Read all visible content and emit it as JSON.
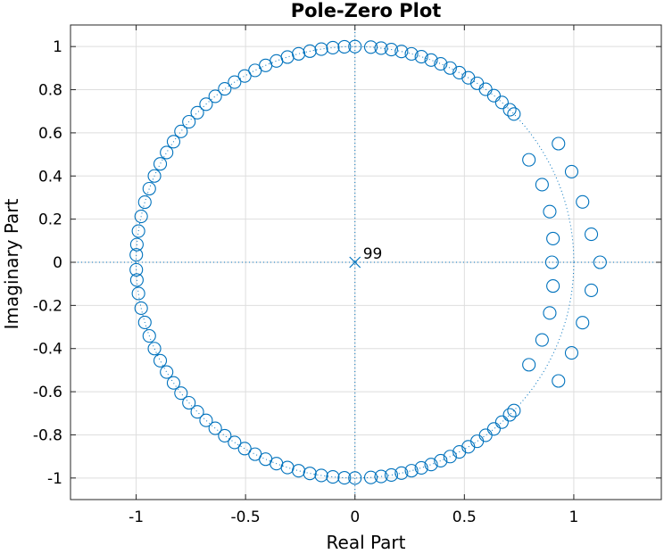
{
  "chart_data": {
    "type": "scatter",
    "title": "Pole-Zero Plot",
    "xlabel": "Real Part",
    "ylabel": "Imaginary Part",
    "xlim": [
      -1.3,
      1.4
    ],
    "ylim": [
      -1.1,
      1.1
    ],
    "xticks": [
      -1,
      -0.5,
      0,
      0.5,
      1
    ],
    "xtick_labels": [
      "-1",
      "-0.5",
      "0",
      "0.5",
      "1"
    ],
    "yticks": [
      1,
      0.8,
      0.6,
      0.4,
      0.2,
      0,
      -0.2,
      -0.4,
      -0.6,
      -0.8,
      -1
    ],
    "ytick_labels": [
      "1",
      "0.8",
      "0.6",
      "0.4",
      "0.2",
      "0",
      "-0.2",
      "-0.4",
      "-0.6",
      "-0.8",
      "-1"
    ],
    "grid": true,
    "unit_circle": true,
    "colors": {
      "marker": "#0072BD",
      "grid": "#dedede",
      "axes": "#262626"
    },
    "poles": [
      {
        "x": 0,
        "y": 0,
        "label": "99"
      }
    ],
    "zeros": [
      [
        1.12,
        0.0
      ],
      [
        1.08,
        0.13
      ],
      [
        1.08,
        -0.13
      ],
      [
        1.04,
        0.28
      ],
      [
        1.04,
        -0.28
      ],
      [
        0.99,
        0.42
      ],
      [
        0.99,
        -0.42
      ],
      [
        0.93,
        0.55
      ],
      [
        0.93,
        -0.55
      ],
      [
        0.905,
        0.11
      ],
      [
        0.905,
        -0.11
      ],
      [
        0.9,
        0.0
      ],
      [
        0.89,
        0.235
      ],
      [
        0.89,
        -0.235
      ],
      [
        0.855,
        0.36
      ],
      [
        0.855,
        -0.36
      ],
      [
        0.795,
        0.475
      ],
      [
        0.795,
        -0.475
      ],
      [
        0.7265,
        0.6873
      ],
      [
        0.7265,
        -0.6873
      ],
      [
        0.7071,
        0.7071
      ],
      [
        0.7071,
        -0.7071
      ],
      [
        0.6715,
        0.741
      ],
      [
        0.6715,
        -0.741
      ],
      [
        0.635,
        0.7725
      ],
      [
        0.635,
        -0.7725
      ],
      [
        0.5972,
        0.8021
      ],
      [
        0.5972,
        -0.8021
      ],
      [
        0.5582,
        0.8297
      ],
      [
        0.5582,
        -0.8297
      ],
      [
        0.5181,
        0.8553
      ],
      [
        0.5181,
        -0.8553
      ],
      [
        0.477,
        0.8789
      ],
      [
        0.477,
        -0.8789
      ],
      [
        0.4349,
        0.9005
      ],
      [
        0.4349,
        -0.9005
      ],
      [
        0.3918,
        0.92
      ],
      [
        0.3918,
        -0.92
      ],
      [
        0.348,
        0.9375
      ],
      [
        0.348,
        -0.9375
      ],
      [
        0.3035,
        0.9528
      ],
      [
        0.3035,
        -0.9528
      ],
      [
        0.2583,
        0.9661
      ],
      [
        0.2583,
        -0.9661
      ],
      [
        0.2125,
        0.9772
      ],
      [
        0.2125,
        -0.9772
      ],
      [
        0.1662,
        0.9861
      ],
      [
        0.1662,
        -0.9861
      ],
      [
        0.1195,
        0.9928
      ],
      [
        0.1195,
        -0.9928
      ],
      [
        0.0725,
        0.9974
      ],
      [
        0.0725,
        -0.9974
      ],
      [
        -0.0,
        1.0
      ],
      [
        -0.0,
        -1.0
      ],
      [
        -0.0483,
        0.9988
      ],
      [
        -0.0483,
        -0.9988
      ],
      [
        -0.1012,
        0.9949
      ],
      [
        -0.1012,
        -0.9949
      ],
      [
        -0.1538,
        0.9881
      ],
      [
        -0.1538,
        -0.9881
      ],
      [
        -0.206,
        0.9786
      ],
      [
        -0.206,
        -0.9786
      ],
      [
        -0.2576,
        0.9662
      ],
      [
        -0.2576,
        -0.9662
      ],
      [
        -0.3086,
        0.9512
      ],
      [
        -0.3086,
        -0.9512
      ],
      [
        -0.3589,
        0.9334
      ],
      [
        -0.3589,
        -0.9334
      ],
      [
        -0.4083,
        0.9128
      ],
      [
        -0.4083,
        -0.9128
      ],
      [
        -0.4567,
        0.8896
      ],
      [
        -0.4567,
        -0.8896
      ],
      [
        -0.504,
        0.8637
      ],
      [
        -0.504,
        -0.8637
      ],
      [
        -0.5502,
        0.8351
      ],
      [
        -0.5502,
        -0.8351
      ],
      [
        -0.5951,
        0.8039
      ],
      [
        -0.5951,
        -0.8039
      ],
      [
        -0.6386,
        0.7695
      ],
      [
        -0.6386,
        -0.7695
      ],
      [
        -0.6804,
        0.7328
      ],
      [
        -0.6804,
        -0.7328
      ],
      [
        -0.7205,
        0.6935
      ],
      [
        -0.7205,
        -0.6935
      ],
      [
        -0.7588,
        0.6513
      ],
      [
        -0.7588,
        -0.6513
      ],
      [
        -0.7951,
        0.6065
      ],
      [
        -0.7951,
        -0.6065
      ],
      [
        -0.8291,
        0.5591
      ],
      [
        -0.8291,
        -0.5591
      ],
      [
        -0.8608,
        0.5089
      ],
      [
        -0.8608,
        -0.5089
      ],
      [
        -0.89,
        0.456
      ],
      [
        -0.89,
        -0.456
      ],
      [
        -0.9165,
        0.4001
      ],
      [
        -0.9165,
        -0.4001
      ],
      [
        -0.94,
        0.3412
      ],
      [
        -0.94,
        -0.3412
      ],
      [
        -0.9604,
        0.2787
      ],
      [
        -0.9604,
        -0.2787
      ],
      [
        -0.9771,
        0.2128
      ],
      [
        -0.9771,
        -0.2128
      ],
      [
        -0.9895,
        0.1446
      ],
      [
        -0.9895,
        -0.1446
      ],
      [
        -0.9966,
        0.0822
      ],
      [
        -0.9966,
        -0.0822
      ],
      [
        -0.9994,
        0.0346
      ],
      [
        -0.9994,
        -0.0346
      ]
    ]
  }
}
